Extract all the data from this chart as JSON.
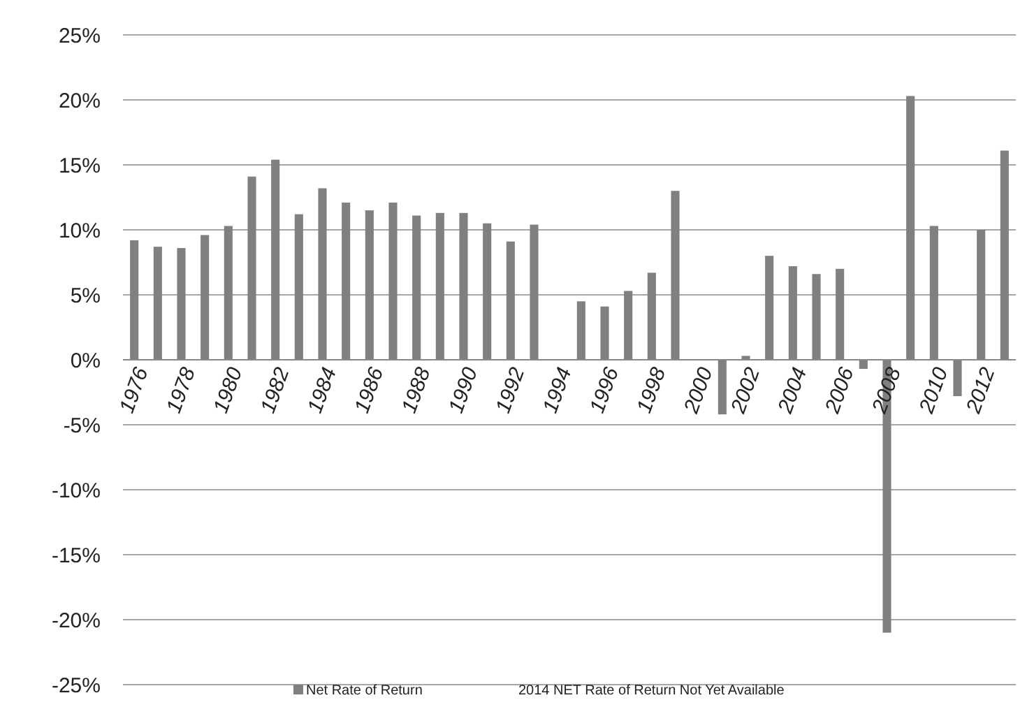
{
  "chart_data": {
    "type": "bar",
    "categories": [
      "1976",
      null,
      "1978",
      null,
      "1980",
      null,
      "1982",
      null,
      "1984",
      null,
      "1986",
      null,
      "1988",
      null,
      "1990",
      null,
      "1992",
      null,
      "1994",
      null,
      "1996",
      null,
      "1998",
      null,
      "2000",
      null,
      "2002",
      null,
      "2004",
      null,
      "2006",
      null,
      "2008",
      null,
      "2010",
      null,
      "2012",
      null
    ],
    "series": [
      {
        "name": "Net Rate of Return",
        "color": "#808080",
        "values": [
          9.2,
          8.7,
          8.6,
          9.6,
          10.3,
          14.1,
          15.4,
          11.2,
          13.2,
          12.1,
          11.5,
          12.1,
          11.1,
          11.3,
          11.3,
          10.5,
          9.1,
          10.4,
          null,
          4.5,
          4.1,
          5.3,
          6.7,
          13.0,
          null,
          -4.2,
          0.3,
          8.0,
          7.2,
          6.6,
          7.0,
          -0.7,
          -21.0,
          20.3,
          10.3,
          -2.8,
          10.0,
          16.1
        ]
      }
    ],
    "ylim": [
      -25,
      25
    ],
    "yticks": [
      {
        "value": -25,
        "label": "-25%"
      },
      {
        "value": -20,
        "label": "-20%"
      },
      {
        "value": -15,
        "label": "-15%"
      },
      {
        "value": -10,
        "label": "-10%"
      },
      {
        "value": -5,
        "label": "-5%"
      },
      {
        "value": 0,
        "label": "0%"
      },
      {
        "value": 5,
        "label": "5%"
      },
      {
        "value": 10,
        "label": "10%"
      },
      {
        "value": 15,
        "label": "15%"
      },
      {
        "value": 20,
        "label": "20%"
      },
      {
        "value": 25,
        "label": "25%"
      }
    ],
    "grid": "y",
    "legend": "bottom",
    "annotations": [
      "2014 NET Rate of Return Not Yet Available"
    ]
  }
}
